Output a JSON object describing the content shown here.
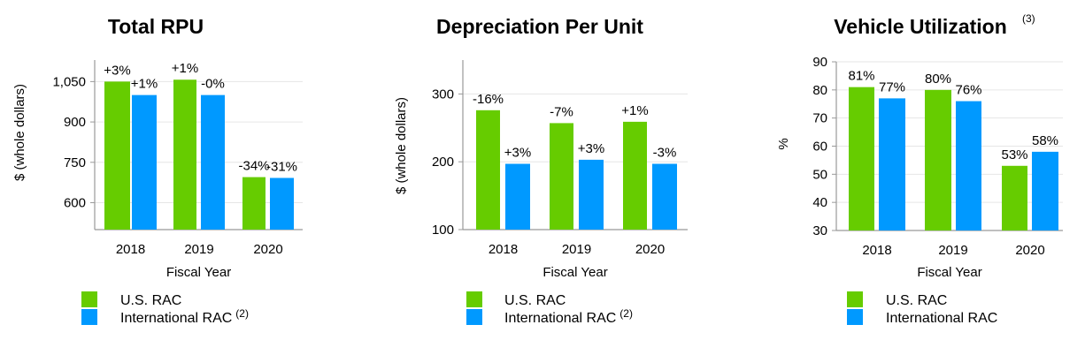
{
  "colors": {
    "us": "#66cc00",
    "intl": "#0099ff",
    "grid": "#e6e6e6",
    "axis": "#999999"
  },
  "chart_data": [
    {
      "type": "bar",
      "title": "Total RPU",
      "title_sup": "",
      "xlabel": "Fiscal Year",
      "ylabel": "$ (whole dollars)",
      "categories": [
        "2018",
        "2019",
        "2020"
      ],
      "ylim": [
        500,
        1130
      ],
      "yticks": [
        600,
        750,
        900,
        1050
      ],
      "ytick_labels": [
        "600",
        "750",
        "900",
        "1,050"
      ],
      "series": [
        {
          "name": "U.S. RAC",
          "name_sup": "",
          "values": [
            1050,
            1057,
            695
          ],
          "labels": [
            "+3%",
            "+1%",
            "-34%"
          ]
        },
        {
          "name": "International RAC",
          "name_sup": "(2)",
          "values": [
            1000,
            1000,
            692
          ],
          "labels": [
            "+1%",
            "-0%",
            "-31%"
          ]
        }
      ]
    },
    {
      "type": "bar",
      "title": "Depreciation Per Unit",
      "title_sup": "",
      "xlabel": "Fiscal Year",
      "ylabel": "$ (whole dollars)",
      "categories": [
        "2018",
        "2019",
        "2020"
      ],
      "ylim": [
        100,
        350
      ],
      "yticks": [
        100,
        200,
        300
      ],
      "ytick_labels": [
        "100",
        "200",
        "300"
      ],
      "series": [
        {
          "name": "U.S. RAC",
          "name_sup": "",
          "values": [
            276,
            257,
            259
          ],
          "labels": [
            "-16%",
            "-7%",
            "+1%"
          ]
        },
        {
          "name": "International RAC",
          "name_sup": "(2)",
          "values": [
            197,
            203,
            197
          ],
          "labels": [
            "+3%",
            "+3%",
            "-3%"
          ]
        }
      ]
    },
    {
      "type": "bar",
      "title": "Vehicle Utilization",
      "title_sup": "(3)",
      "xlabel": "Fiscal Year",
      "ylabel": "%",
      "categories": [
        "2018",
        "2019",
        "2020"
      ],
      "ylim": [
        30,
        90
      ],
      "yticks": [
        30,
        40,
        50,
        60,
        70,
        80,
        90
      ],
      "ytick_labels": [
        "30",
        "40",
        "50",
        "60",
        "70",
        "80",
        "90"
      ],
      "series": [
        {
          "name": "U.S. RAC",
          "name_sup": "",
          "values": [
            81,
            80,
            53
          ],
          "labels": [
            "81%",
            "80%",
            "53%"
          ]
        },
        {
          "name": "International RAC",
          "name_sup": "",
          "values": [
            77,
            76,
            58
          ],
          "labels": [
            "77%",
            "76%",
            "58%"
          ]
        }
      ]
    }
  ]
}
